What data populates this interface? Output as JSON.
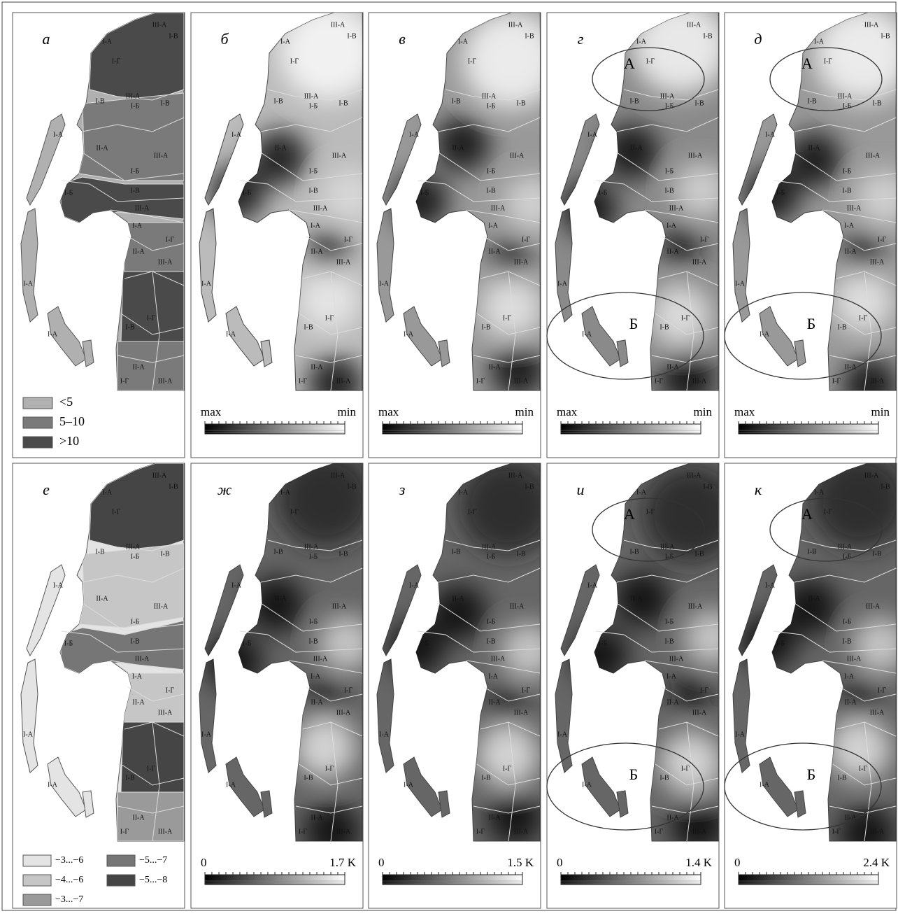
{
  "region_names": [
    "I-А",
    "I-Б",
    "I-В",
    "I-Г",
    "II-А",
    "III-А"
  ],
  "panels": [
    {
      "letter": "а",
      "legend": [
        {
          "label": "<5",
          "color": "#b0b0b0"
        },
        {
          "label": "5–10",
          "color": "#7a7a7a"
        },
        {
          "label": ">10",
          "color": "#4a4a4a"
        }
      ]
    },
    {
      "letter": "б",
      "scale": [
        "max",
        "min"
      ]
    },
    {
      "letter": "в",
      "scale": [
        "max",
        "min"
      ]
    },
    {
      "letter": "г",
      "scale": [
        "max",
        "min"
      ],
      "zones": [
        "А",
        "Б"
      ]
    },
    {
      "letter": "д",
      "scale": [
        "max",
        "min"
      ],
      "zones": [
        "А",
        "Б"
      ]
    },
    {
      "letter": "е",
      "legend": [
        {
          "label": "−3...−6",
          "color": "#e4e4e4"
        },
        {
          "label": "−4...−6",
          "color": "#c6c6c6"
        },
        {
          "label": "−3...−7",
          "color": "#9a9a9a"
        },
        {
          "label": "−5...−7",
          "color": "#767676"
        },
        {
          "label": "−5...−8",
          "color": "#454545"
        }
      ]
    },
    {
      "letter": "ж",
      "scale": [
        "0",
        "1.7 K"
      ]
    },
    {
      "letter": "з",
      "scale": [
        "0",
        "1.5 K"
      ]
    },
    {
      "letter": "и",
      "scale": [
        "0",
        "1.4 K"
      ],
      "zones": [
        "А",
        "Б"
      ]
    },
    {
      "letter": "к",
      "scale": [
        "0",
        "2.4 K"
      ],
      "zones": [
        "А",
        "Б"
      ]
    }
  ]
}
